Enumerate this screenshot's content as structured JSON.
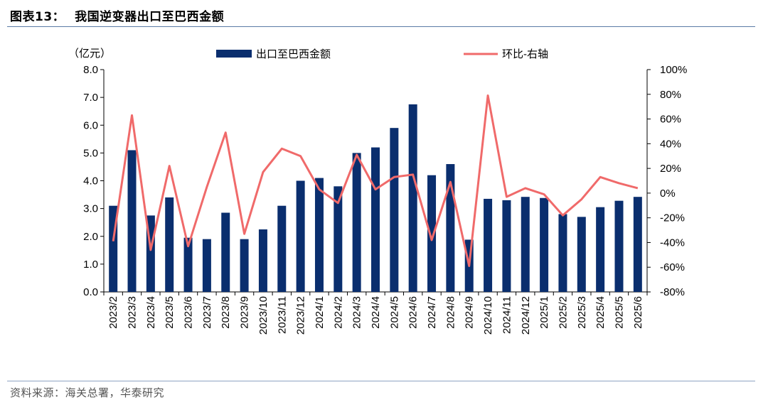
{
  "header": {
    "fig_no": "图表13：",
    "title": "我国逆变器出口至巴西金额"
  },
  "footer": {
    "source": "资料来源：海关总署，华泰研究"
  },
  "colors": {
    "bar": "#0a2e6e",
    "line": "#f06a6a",
    "rule": "#5b7ba6"
  },
  "chart_data": {
    "type": "bar",
    "categories": [
      "2023/2",
      "2023/3",
      "2023/4",
      "2023/5",
      "2023/6",
      "2023/7",
      "2023/8",
      "2023/9",
      "2023/10",
      "2023/11",
      "2023/12",
      "2024/1",
      "2024/2",
      "2024/3",
      "2024/4",
      "2024/5",
      "2024/6",
      "2024/7",
      "2024/8",
      "2024/9",
      "2024/10",
      "2024/11",
      "2024/12",
      "2025/1",
      "2025/2",
      "2025/3",
      "2025/4",
      "2025/5",
      "2025/6"
    ],
    "series": [
      {
        "name": "出口至巴西金额",
        "type": "bar",
        "axis": "left",
        "values": [
          3.1,
          5.1,
          2.75,
          3.4,
          1.95,
          1.9,
          2.85,
          1.9,
          2.25,
          3.1,
          4.0,
          4.1,
          3.8,
          5.0,
          5.2,
          5.9,
          6.75,
          4.2,
          4.6,
          1.88,
          3.35,
          3.3,
          3.42,
          3.38,
          2.8,
          2.7,
          3.05,
          3.28,
          3.42
        ]
      },
      {
        "name": "环比-右轴",
        "type": "line",
        "axis": "right",
        "values": [
          -39,
          63,
          -46,
          22,
          -43,
          5,
          49,
          -33,
          17,
          36,
          30,
          3,
          -8,
          31,
          3,
          13,
          15,
          -38,
          9,
          -59,
          79,
          -3,
          4,
          -1,
          -18,
          -5,
          13,
          8,
          4
        ]
      }
    ],
    "y_left": {
      "label": "（亿元）",
      "ylim": [
        0,
        8
      ],
      "ticks": [
        "0.0",
        "1.0",
        "2.0",
        "3.0",
        "4.0",
        "5.0",
        "6.0",
        "7.0",
        "8.0"
      ]
    },
    "y_right": {
      "ylim": [
        -80,
        100
      ],
      "ticks": [
        "-80%",
        "-60%",
        "-40%",
        "-20%",
        "0%",
        "20%",
        "40%",
        "60%",
        "80%",
        "100%"
      ]
    },
    "legend": "top",
    "grid": false
  }
}
